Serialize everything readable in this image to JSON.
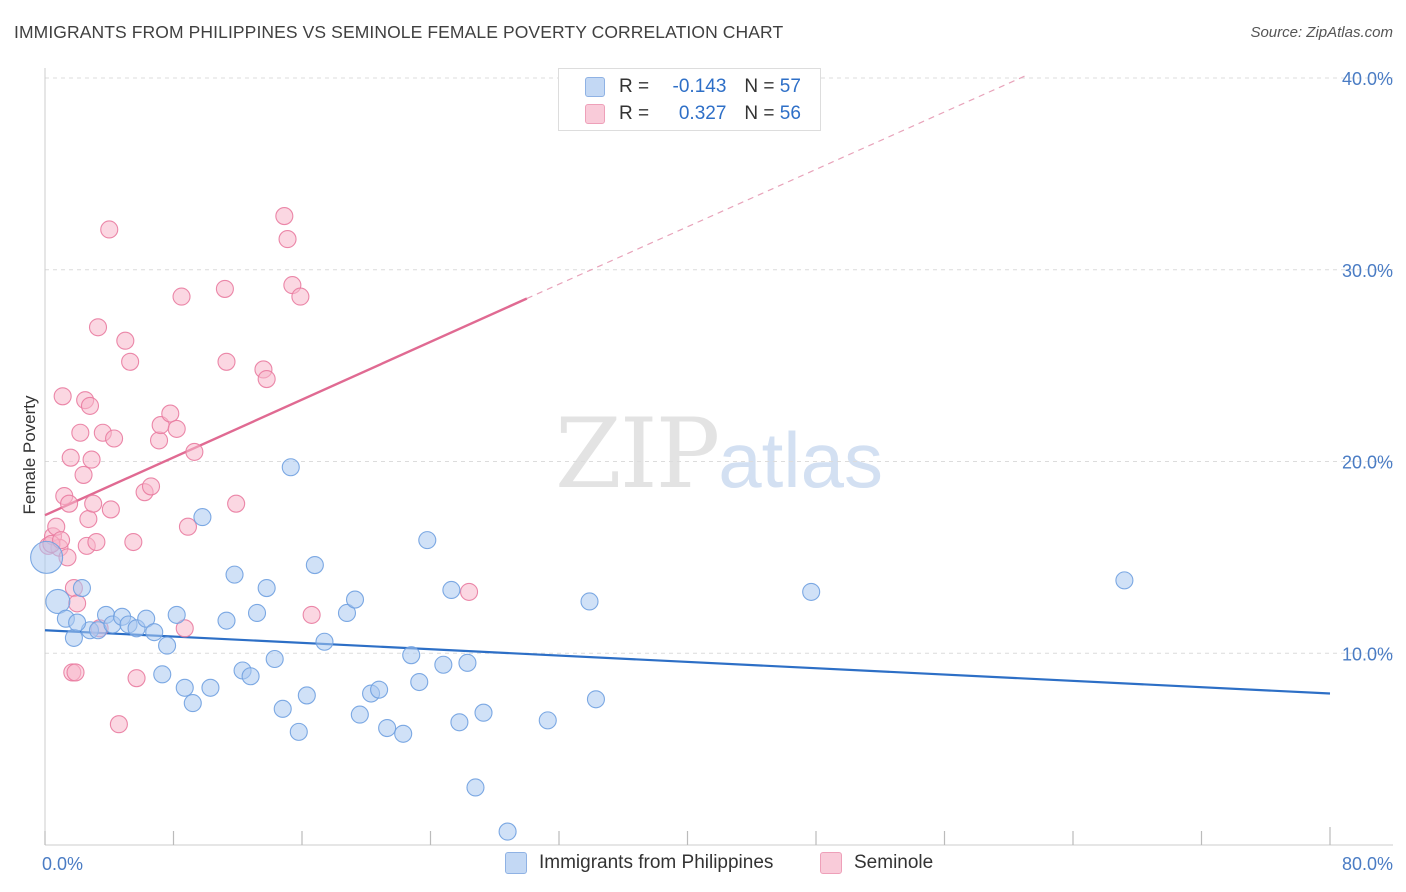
{
  "title": "IMMIGRANTS FROM PHILIPPINES VS SEMINOLE FEMALE POVERTY CORRELATION CHART",
  "source": "Source: ZipAtlas.com",
  "watermark": {
    "zip": "ZIP",
    "atlas": "atlas"
  },
  "legend": {
    "rows": [
      {
        "r_label": "R =",
        "r_value": "-0.143",
        "n_label": "N =",
        "n_value": "57",
        "color": "#a9c8f0"
      },
      {
        "r_label": "R =",
        "r_value": "0.327",
        "n_label": "N =",
        "n_value": "56",
        "color": "#f7b6ca"
      }
    ]
  },
  "bottom_legend": [
    {
      "label": "Immigrants from Philippines",
      "color": "#a9c8f0"
    },
    {
      "label": "Seminole",
      "color": "#f7b6ca"
    }
  ],
  "chart_data": {
    "type": "scatter",
    "title": "IMMIGRANTS FROM PHILIPPINES VS SEMINOLE FEMALE POVERTY CORRELATION CHART",
    "xlabel": "",
    "ylabel": "Female Poverty",
    "xlim": [
      0,
      80
    ],
    "ylim": [
      0,
      40
    ],
    "x_tick_labels": [
      "0.0%",
      "80.0%"
    ],
    "y_ticks": [
      10,
      20,
      30,
      40
    ],
    "y_tick_labels": [
      "10.0%",
      "20.0%",
      "30.0%",
      "40.0%"
    ],
    "grid": "horizontal dashed",
    "series": [
      {
        "name": "Immigrants from Philippines",
        "color": "#6fa0e0",
        "fill": "#a9c8f0",
        "trend": {
          "x": [
            0,
            80
          ],
          "y": [
            11.2,
            7.9
          ]
        },
        "points": [
          [
            0.1,
            15.0
          ],
          [
            0.8,
            12.7
          ],
          [
            1.3,
            11.8
          ],
          [
            1.8,
            10.8
          ],
          [
            2.3,
            13.4
          ],
          [
            2.8,
            11.2
          ],
          [
            3.3,
            11.2
          ],
          [
            3.8,
            12.0
          ],
          [
            4.2,
            11.5
          ],
          [
            4.8,
            11.9
          ],
          [
            5.2,
            11.5
          ],
          [
            5.7,
            11.3
          ],
          [
            6.3,
            11.8
          ],
          [
            6.8,
            11.1
          ],
          [
            7.3,
            8.9
          ],
          [
            7.6,
            10.4
          ],
          [
            8.2,
            12.0
          ],
          [
            8.7,
            8.2
          ],
          [
            9.2,
            7.4
          ],
          [
            9.8,
            17.1
          ],
          [
            10.3,
            8.2
          ],
          [
            11.3,
            11.7
          ],
          [
            11.8,
            14.1
          ],
          [
            12.3,
            9.1
          ],
          [
            12.8,
            8.8
          ],
          [
            13.2,
            12.1
          ],
          [
            13.8,
            13.4
          ],
          [
            14.3,
            9.7
          ],
          [
            14.8,
            7.1
          ],
          [
            15.3,
            19.7
          ],
          [
            15.8,
            5.9
          ],
          [
            16.3,
            7.8
          ],
          [
            16.8,
            14.6
          ],
          [
            17.4,
            10.6
          ],
          [
            18.8,
            12.1
          ],
          [
            19.3,
            12.8
          ],
          [
            19.6,
            6.8
          ],
          [
            20.3,
            7.9
          ],
          [
            20.8,
            8.1
          ],
          [
            21.3,
            6.1
          ],
          [
            22.3,
            5.8
          ],
          [
            22.8,
            9.9
          ],
          [
            23.3,
            8.5
          ],
          [
            23.8,
            15.9
          ],
          [
            24.8,
            9.4
          ],
          [
            25.3,
            13.3
          ],
          [
            25.8,
            6.4
          ],
          [
            26.3,
            9.5
          ],
          [
            26.8,
            3.0
          ],
          [
            27.3,
            6.9
          ],
          [
            28.8,
            0.7
          ],
          [
            31.3,
            6.5
          ],
          [
            33.9,
            12.7
          ],
          [
            34.3,
            7.6
          ],
          [
            47.7,
            13.2
          ],
          [
            67.2,
            13.8
          ],
          [
            2.0,
            11.6
          ]
        ]
      },
      {
        "name": "Seminole",
        "color": "#e97ba0",
        "fill": "#f7b6ca",
        "trend": {
          "x": [
            0,
            30
          ],
          "y": [
            17.2,
            28.5
          ]
        },
        "trend_extension": {
          "x": [
            30,
            61
          ],
          "y": [
            28.5,
            40.1
          ]
        },
        "points": [
          [
            0.2,
            15.6
          ],
          [
            0.5,
            16.1
          ],
          [
            0.7,
            16.6
          ],
          [
            0.9,
            15.5
          ],
          [
            1.1,
            23.4
          ],
          [
            1.2,
            18.2
          ],
          [
            1.4,
            15.0
          ],
          [
            1.5,
            17.8
          ],
          [
            1.6,
            20.2
          ],
          [
            1.7,
            9.0
          ],
          [
            1.8,
            13.4
          ],
          [
            1.9,
            9.0
          ],
          [
            2.0,
            12.6
          ],
          [
            2.2,
            21.5
          ],
          [
            2.4,
            19.3
          ],
          [
            2.5,
            23.2
          ],
          [
            2.6,
            15.6
          ],
          [
            2.7,
            17.0
          ],
          [
            2.8,
            22.9
          ],
          [
            2.9,
            20.1
          ],
          [
            3.0,
            17.8
          ],
          [
            3.2,
            15.8
          ],
          [
            3.3,
            27.0
          ],
          [
            3.4,
            11.3
          ],
          [
            3.6,
            21.5
          ],
          [
            4.0,
            32.1
          ],
          [
            4.1,
            17.5
          ],
          [
            4.3,
            21.2
          ],
          [
            4.6,
            6.3
          ],
          [
            5.0,
            26.3
          ],
          [
            5.3,
            25.2
          ],
          [
            5.5,
            15.8
          ],
          [
            5.7,
            8.7
          ],
          [
            6.2,
            18.4
          ],
          [
            6.6,
            18.7
          ],
          [
            7.1,
            21.1
          ],
          [
            7.2,
            21.9
          ],
          [
            7.8,
            22.5
          ],
          [
            8.2,
            21.7
          ],
          [
            8.5,
            28.6
          ],
          [
            8.7,
            11.3
          ],
          [
            8.9,
            16.6
          ],
          [
            9.3,
            20.5
          ],
          [
            11.2,
            29.0
          ],
          [
            11.3,
            25.2
          ],
          [
            11.9,
            17.8
          ],
          [
            13.6,
            24.8
          ],
          [
            13.8,
            24.3
          ],
          [
            14.9,
            32.8
          ],
          [
            15.1,
            31.6
          ],
          [
            15.4,
            29.2
          ],
          [
            15.9,
            28.6
          ],
          [
            16.6,
            12.0
          ],
          [
            26.4,
            13.2
          ],
          [
            0.4,
            15.7
          ],
          [
            1.0,
            15.9
          ]
        ]
      }
    ]
  }
}
